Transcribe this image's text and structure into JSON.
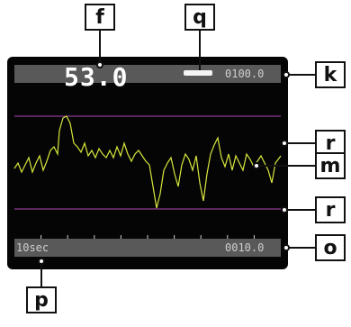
{
  "readout": {
    "main_value": "53.0",
    "upper_range": "0100.0",
    "lower_range": "0010.0",
    "time_span": "10sec"
  },
  "callouts": {
    "f": "f",
    "q": "q",
    "k": "k",
    "r_upper": "r",
    "m": "m",
    "r_lower": "r",
    "o": "o",
    "p": "p"
  },
  "colors": {
    "trace": "#d8e83c",
    "limit_lines": "#b04ab8",
    "bars": "#595959",
    "screen": "#050505"
  }
}
